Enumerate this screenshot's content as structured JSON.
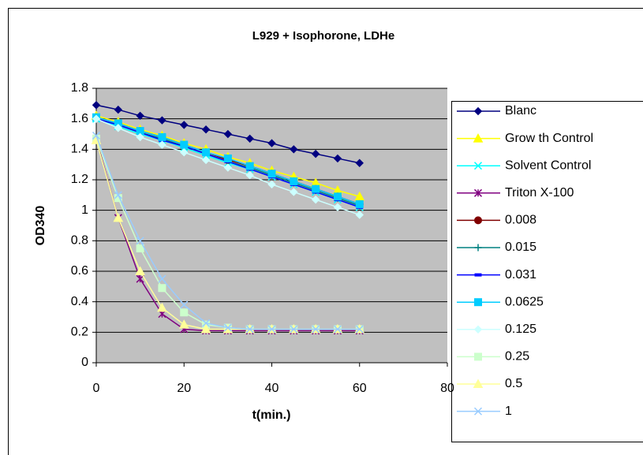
{
  "chart_data": {
    "type": "line",
    "title": "L929 + Isophorone, LDHe",
    "x_label": "t(min.)",
    "y_label": "OD340",
    "x": [
      0,
      5,
      10,
      15,
      20,
      25,
      30,
      35,
      40,
      45,
      50,
      55,
      60
    ],
    "xlim": [
      0,
      80
    ],
    "xticks": [
      0,
      20,
      40,
      60,
      80
    ],
    "ylim": [
      0,
      1.8
    ],
    "yticks": [
      0,
      0.2,
      0.4,
      0.6,
      0.8,
      1,
      1.2,
      1.4,
      1.6,
      1.8
    ],
    "grid": true,
    "legend": "right",
    "series": [
      {
        "name": "Blanc",
        "color": "#000080",
        "marker": "diamond",
        "values": [
          1.69,
          1.66,
          1.62,
          1.59,
          1.56,
          1.53,
          1.5,
          1.47,
          1.44,
          1.4,
          1.37,
          1.34,
          1.31
        ]
      },
      {
        "name": "Grow th Control",
        "color": "#ffff00",
        "marker": "triangle",
        "values": [
          1.62,
          1.58,
          1.53,
          1.49,
          1.44,
          1.4,
          1.35,
          1.31,
          1.26,
          1.22,
          1.18,
          1.13,
          1.09
        ]
      },
      {
        "name": "Solvent Control",
        "color": "#00ffff",
        "marker": "x",
        "values": [
          1.6,
          1.55,
          1.5,
          1.46,
          1.41,
          1.36,
          1.31,
          1.27,
          1.22,
          1.17,
          1.12,
          1.07,
          1.02
        ]
      },
      {
        "name": "Triton X-100",
        "color": "#800080",
        "marker": "star",
        "values": [
          1.47,
          0.95,
          0.55,
          0.32,
          0.22,
          0.21,
          0.21,
          0.21,
          0.21,
          0.21,
          0.21,
          0.21,
          0.21
        ]
      },
      {
        "name": "0.008",
        "color": "#800000",
        "marker": "circle",
        "values": [
          1.61,
          1.57,
          1.52,
          1.48,
          1.43,
          1.38,
          1.33,
          1.29,
          1.24,
          1.19,
          1.14,
          1.09,
          1.04
        ]
      },
      {
        "name": "0.015",
        "color": "#008080",
        "marker": "plus",
        "values": [
          1.6,
          1.56,
          1.51,
          1.47,
          1.42,
          1.37,
          1.32,
          1.28,
          1.23,
          1.18,
          1.13,
          1.08,
          1.03
        ]
      },
      {
        "name": "0.031",
        "color": "#0000ff",
        "marker": "dash",
        "values": [
          1.6,
          1.56,
          1.51,
          1.46,
          1.42,
          1.37,
          1.32,
          1.27,
          1.22,
          1.17,
          1.12,
          1.07,
          1.02
        ]
      },
      {
        "name": "0.0625",
        "color": "#00ccff",
        "marker": "square",
        "values": [
          1.61,
          1.57,
          1.52,
          1.48,
          1.43,
          1.38,
          1.34,
          1.29,
          1.24,
          1.19,
          1.14,
          1.09,
          1.04
        ]
      },
      {
        "name": "0.125",
        "color": "#ccffff",
        "marker": "diamond",
        "values": [
          1.6,
          1.54,
          1.48,
          1.43,
          1.38,
          1.33,
          1.28,
          1.23,
          1.17,
          1.12,
          1.07,
          1.02,
          0.97
        ]
      },
      {
        "name": "0.25",
        "color": "#ccffcc",
        "marker": "square",
        "values": [
          1.47,
          1.08,
          0.75,
          0.49,
          0.33,
          0.25,
          0.23,
          0.22,
          0.22,
          0.22,
          0.22,
          0.22,
          0.22
        ]
      },
      {
        "name": "0.5",
        "color": "#ffff99",
        "marker": "triangle",
        "values": [
          1.46,
          0.95,
          0.6,
          0.36,
          0.25,
          0.22,
          0.22,
          0.22,
          0.22,
          0.22,
          0.22,
          0.22,
          0.22
        ]
      },
      {
        "name": "1",
        "color": "#99ccff",
        "marker": "x",
        "values": [
          1.49,
          1.1,
          0.8,
          0.55,
          0.38,
          0.26,
          0.23,
          0.22,
          0.22,
          0.22,
          0.22,
          0.22,
          0.22
        ]
      }
    ]
  }
}
